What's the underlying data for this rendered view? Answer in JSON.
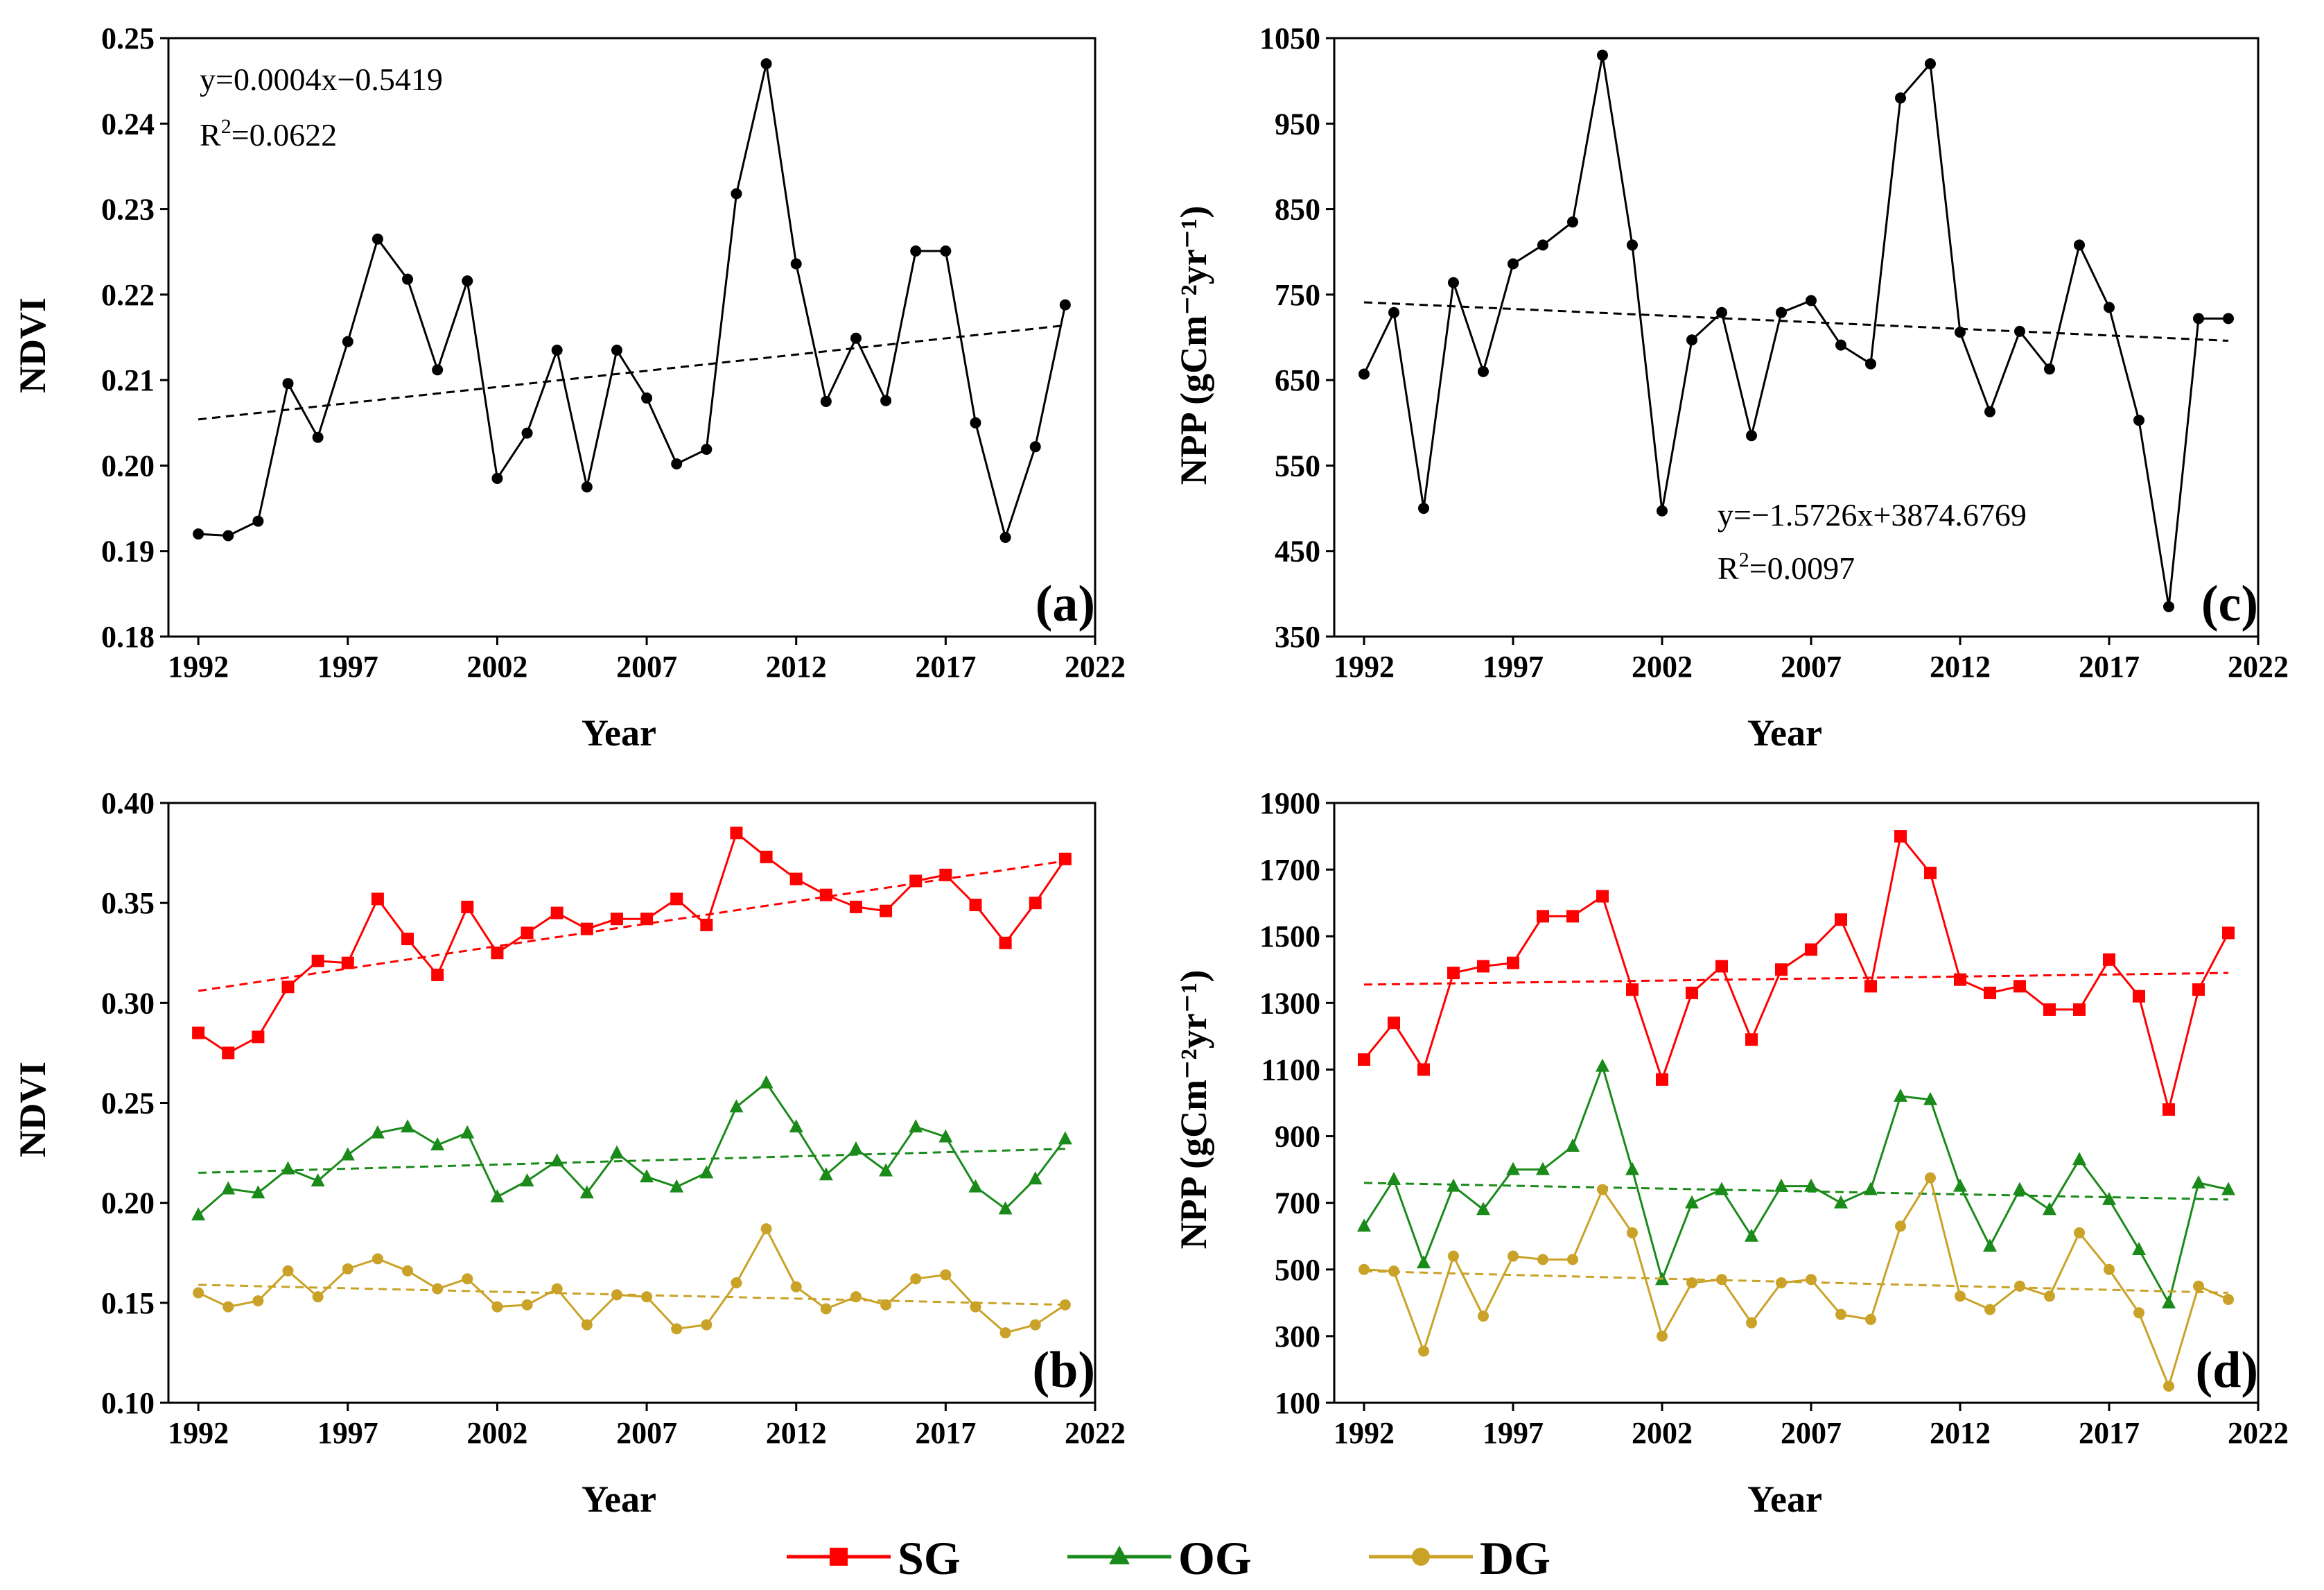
{
  "legend": [
    {
      "name": "SG",
      "color": "#ff0000",
      "marker": "square"
    },
    {
      "name": "OG",
      "color": "#1a8a1a",
      "marker": "triangle"
    },
    {
      "name": "DG",
      "color": "#c9a227",
      "marker": "circle"
    }
  ],
  "chart_data": [
    {
      "id": "a",
      "type": "line",
      "panel_label": "(a)",
      "xlabel": "Year",
      "ylabel": "NDVI",
      "xlim": [
        1991,
        2022
      ],
      "xticks": [
        1992,
        1997,
        2002,
        2007,
        2012,
        2017,
        2022
      ],
      "ylim": [
        0.18,
        0.25
      ],
      "yticks": [
        0.18,
        0.19,
        0.2,
        0.21,
        0.22,
        0.23,
        0.24,
        0.25
      ],
      "ytick_decimals": 2,
      "equation": "y=0.0004x−0.5419",
      "r2_prefix": "R",
      "r2_sup": "2",
      "r2_value": "=0.0622",
      "x": [
        1992,
        1993,
        1994,
        1995,
        1996,
        1997,
        1998,
        1999,
        2000,
        2001,
        2002,
        2003,
        2004,
        2005,
        2006,
        2007,
        2008,
        2009,
        2010,
        2011,
        2012,
        2013,
        2014,
        2015,
        2016,
        2017,
        2018,
        2019,
        2020,
        2021
      ],
      "series": [
        {
          "name": "NDVI",
          "color": "#000000",
          "marker": "circle",
          "values": [
            0.192,
            0.1918,
            0.1935,
            0.2096,
            0.2033,
            0.2145,
            0.2265,
            0.2218,
            0.2112,
            0.2216,
            0.1985,
            0.2038,
            0.2135,
            0.1975,
            0.2135,
            0.2079,
            0.2002,
            0.2019,
            0.2318,
            0.247,
            0.2236,
            0.2075,
            0.2149,
            0.2076,
            0.2251,
            0.2251,
            0.205,
            0.1916,
            0.2022,
            0.2188
          ],
          "trend": [
            0.2054,
            0.2164
          ]
        }
      ]
    },
    {
      "id": "c",
      "type": "line",
      "panel_label": "(c)",
      "xlabel": "Year",
      "ylabel": "NPP (gCm⁻²yr⁻¹)",
      "xlim": [
        1991,
        2022
      ],
      "xticks": [
        1992,
        1997,
        2002,
        2007,
        2012,
        2017,
        2022
      ],
      "ylim": [
        350,
        1050
      ],
      "yticks": [
        350,
        450,
        550,
        650,
        750,
        850,
        950,
        1050
      ],
      "ytick_decimals": 0,
      "equation": "y=−1.5726x+3874.6769",
      "r2_prefix": "R",
      "r2_sup": "2",
      "r2_value": "=0.0097",
      "x": [
        1992,
        1993,
        1994,
        1995,
        1996,
        1997,
        1998,
        1999,
        2000,
        2001,
        2002,
        2003,
        2004,
        2005,
        2006,
        2007,
        2008,
        2009,
        2010,
        2011,
        2012,
        2013,
        2014,
        2015,
        2016,
        2017,
        2018,
        2019,
        2020,
        2021
      ],
      "series": [
        {
          "name": "NPP",
          "color": "#000000",
          "marker": "circle",
          "values": [
            657,
            729,
            500,
            764,
            660,
            786,
            808,
            835,
            1030,
            808,
            497,
            697,
            729,
            585,
            729,
            743,
            691,
            669,
            980,
            1020,
            706,
            613,
            707,
            663,
            808,
            735,
            603,
            385,
            722,
            722
          ],
          "trend": [
            741,
            696
          ]
        }
      ]
    },
    {
      "id": "b",
      "type": "line",
      "panel_label": "(b)",
      "xlabel": "Year",
      "ylabel": "NDVI",
      "xlim": [
        1991,
        2022
      ],
      "xticks": [
        1992,
        1997,
        2002,
        2007,
        2012,
        2017,
        2022
      ],
      "ylim": [
        0.1,
        0.4
      ],
      "yticks": [
        0.1,
        0.15,
        0.2,
        0.25,
        0.3,
        0.35,
        0.4
      ],
      "ytick_decimals": 2,
      "x": [
        1992,
        1993,
        1994,
        1995,
        1996,
        1997,
        1998,
        1999,
        2000,
        2001,
        2002,
        2003,
        2004,
        2005,
        2006,
        2007,
        2008,
        2009,
        2010,
        2011,
        2012,
        2013,
        2014,
        2015,
        2016,
        2017,
        2018,
        2019,
        2020,
        2021
      ],
      "series": [
        {
          "name": "SG",
          "color": "#ff0000",
          "marker": "square",
          "values": [
            0.285,
            0.275,
            0.283,
            0.308,
            0.321,
            0.32,
            0.352,
            0.332,
            0.314,
            0.348,
            0.325,
            0.335,
            0.345,
            0.337,
            0.342,
            0.342,
            0.352,
            0.339,
            0.385,
            0.373,
            0.362,
            0.354,
            0.348,
            0.346,
            0.361,
            0.364,
            0.349,
            0.33,
            0.35,
            0.372
          ],
          "trend": [
            0.306,
            0.371
          ]
        },
        {
          "name": "OG",
          "color": "#1a8a1a",
          "marker": "triangle",
          "values": [
            0.194,
            0.207,
            0.205,
            0.217,
            0.211,
            0.224,
            0.235,
            0.238,
            0.229,
            0.235,
            0.203,
            0.211,
            0.221,
            0.205,
            0.225,
            0.213,
            0.208,
            0.215,
            0.248,
            0.26,
            0.238,
            0.214,
            0.227,
            0.216,
            0.238,
            0.233,
            0.208,
            0.197,
            0.212,
            0.232
          ],
          "trend": [
            0.215,
            0.227
          ]
        },
        {
          "name": "DG",
          "color": "#c9a227",
          "marker": "circle",
          "values": [
            0.155,
            0.148,
            0.151,
            0.166,
            0.153,
            0.167,
            0.172,
            0.166,
            0.157,
            0.162,
            0.148,
            0.149,
            0.157,
            0.139,
            0.154,
            0.153,
            0.137,
            0.139,
            0.16,
            0.187,
            0.158,
            0.147,
            0.153,
            0.149,
            0.162,
            0.164,
            0.148,
            0.135,
            0.139,
            0.149
          ],
          "trend": [
            0.159,
            0.149
          ]
        }
      ]
    },
    {
      "id": "d",
      "type": "line",
      "panel_label": "(d)",
      "xlabel": "Year",
      "ylabel": "NPP (gCm⁻²yr⁻¹)",
      "xlim": [
        1991,
        2022
      ],
      "xticks": [
        1992,
        1997,
        2002,
        2007,
        2012,
        2017,
        2022
      ],
      "ylim": [
        100,
        1900
      ],
      "yticks": [
        100,
        300,
        500,
        700,
        900,
        1100,
        1300,
        1500,
        1700,
        1900
      ],
      "ytick_decimals": 0,
      "x": [
        1992,
        1993,
        1994,
        1995,
        1996,
        1997,
        1998,
        1999,
        2000,
        2001,
        2002,
        2003,
        2004,
        2005,
        2006,
        2007,
        2008,
        2009,
        2010,
        2011,
        2012,
        2013,
        2014,
        2015,
        2016,
        2017,
        2018,
        2019,
        2020,
        2021
      ],
      "series": [
        {
          "name": "SG",
          "color": "#ff0000",
          "marker": "square",
          "values": [
            1130,
            1240,
            1100,
            1390,
            1410,
            1420,
            1560,
            1560,
            1620,
            1340,
            1070,
            1330,
            1410,
            1190,
            1400,
            1460,
            1550,
            1350,
            1800,
            1690,
            1370,
            1330,
            1350,
            1280,
            1280,
            1430,
            1320,
            980,
            1340,
            1510
          ],
          "trend": [
            1355,
            1390
          ]
        },
        {
          "name": "OG",
          "color": "#1a8a1a",
          "marker": "triangle",
          "values": [
            630,
            770,
            520,
            750,
            680,
            800,
            800,
            870,
            1110,
            800,
            470,
            700,
            740,
            600,
            750,
            750,
            700,
            740,
            1020,
            1010,
            750,
            570,
            740,
            680,
            830,
            710,
            560,
            400,
            760,
            740
          ],
          "trend": [
            760,
            710
          ]
        },
        {
          "name": "DG",
          "color": "#c9a227",
          "marker": "circle",
          "values": [
            500,
            495,
            255,
            540,
            360,
            540,
            530,
            530,
            740,
            610,
            300,
            460,
            470,
            340,
            460,
            470,
            365,
            350,
            630,
            775,
            420,
            380,
            450,
            420,
            610,
            500,
            370,
            150,
            450,
            410
          ],
          "trend": [
            495,
            430
          ]
        }
      ]
    }
  ]
}
